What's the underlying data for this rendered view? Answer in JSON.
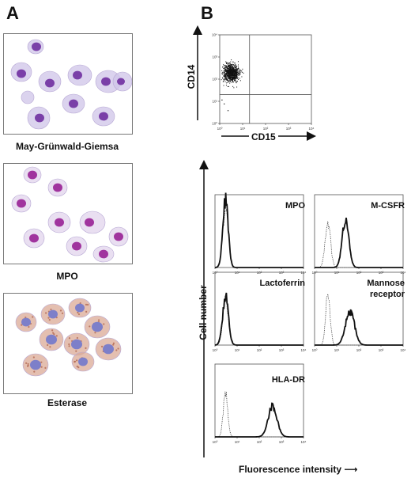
{
  "panel_a": {
    "letter": "A",
    "captions": [
      "May-Grünwald-Giemsa",
      "MPO",
      "Esterase"
    ]
  },
  "panel_b": {
    "letter": "B",
    "scatter": {
      "ylabel": "CD14",
      "xlabel": "CD15",
      "ticks": [
        "10⁰",
        "10¹",
        "10²",
        "10³",
        "10⁴"
      ]
    },
    "histograms": {
      "ylabel": "Cell number",
      "xlabel": "Fluorescence intensity",
      "ticks": [
        "10⁰",
        "10¹",
        "10²",
        "10³",
        "10⁴"
      ],
      "labels": {
        "mpo": "MPO",
        "mcsfr": "M-CSFR",
        "lactoferrin": "Lactoferrin",
        "mannose_1": "Mannose",
        "mannose_2": "receptor",
        "hladr": "HLA-DR"
      }
    }
  },
  "colors": {
    "stain_nucleus": "#8a3fb0",
    "stain_cytoplasm": "#cbbde6",
    "esterase_cytoplasm": "#c98f78",
    "ink": "#111111"
  },
  "chart_data": [
    {
      "type": "scatter",
      "xlabel": "CD15",
      "ylabel": "CD14",
      "xscale": "log",
      "yscale": "log",
      "xlim": [
        1,
        10000
      ],
      "ylim": [
        1,
        10000
      ],
      "quadrant_gate": {
        "x": 20,
        "y": 20
      },
      "population_center": {
        "x": 3,
        "y": 200
      }
    },
    {
      "type": "line",
      "panel": "MPO",
      "xscale": "log",
      "xlim": [
        1,
        10000
      ],
      "series": [
        {
          "mode": 3,
          "peak": 1.0,
          "width_decades": 0.12
        }
      ],
      "control": {
        "mode": 3,
        "peak": 0.85,
        "width_decades": 0.13
      }
    },
    {
      "type": "line",
      "panel": "M-CSFR",
      "xscale": "log",
      "xlim": [
        1,
        10000
      ],
      "series": [
        {
          "mode": 25,
          "peak": 0.7,
          "width_decades": 0.15
        }
      ],
      "control": {
        "mode": 4,
        "peak": 0.65,
        "width_decades": 0.12
      }
    },
    {
      "type": "line",
      "panel": "Lactoferrin",
      "xscale": "log",
      "xlim": [
        1,
        10000
      ],
      "series": [
        {
          "mode": 3,
          "peak": 0.72,
          "width_decades": 0.13
        }
      ],
      "control": {
        "mode": 3,
        "peak": 0.68,
        "width_decades": 0.12
      }
    },
    {
      "type": "line",
      "panel": "Mannose receptor",
      "xscale": "log",
      "xlim": [
        1,
        10000
      ],
      "series": [
        {
          "mode": 40,
          "peak": 0.5,
          "width_decades": 0.2
        }
      ],
      "control": {
        "mode": 4,
        "peak": 0.78,
        "width_decades": 0.1
      }
    },
    {
      "type": "line",
      "panel": "HLA-DR",
      "xscale": "log",
      "xlim": [
        1,
        10000
      ],
      "series": [
        {
          "mode": 400,
          "peak": 0.45,
          "width_decades": 0.2
        }
      ],
      "control": {
        "mode": 3,
        "peak": 0.65,
        "width_decades": 0.1
      }
    }
  ]
}
